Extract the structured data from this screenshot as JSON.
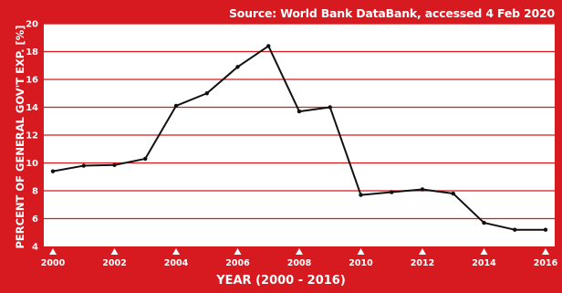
{
  "chart_data": {
    "type": "line",
    "title": "Source: World Bank DataBank, accessed 4 Feb 2020",
    "xlabel": "YEAR (2000 - 2016)",
    "ylabel": "PERCENT OF GENERAL GOV'T EXP. [%]",
    "x": [
      2000,
      2001,
      2002,
      2003,
      2004,
      2005,
      2006,
      2007,
      2008,
      2009,
      2010,
      2011,
      2012,
      2013,
      2014,
      2015,
      2016
    ],
    "series": [
      {
        "values": [
          9.4,
          9.8,
          9.85,
          10.3,
          14.1,
          15.0,
          16.9,
          18.4,
          13.7,
          14.0,
          7.7,
          7.9,
          8.1,
          7.8,
          5.7,
          5.2,
          5.2
        ]
      }
    ],
    "xticks": [
      2000,
      2002,
      2004,
      2006,
      2008,
      2010,
      2012,
      2014,
      2016
    ],
    "yticks": [
      4,
      6,
      8,
      10,
      12,
      14,
      16,
      18,
      20
    ],
    "xlim": [
      2000,
      2016
    ],
    "ylim": [
      4,
      20
    ],
    "grid": "horizontal",
    "colors": {
      "background": "#d71920",
      "plot_area": "#ffffff",
      "grid": "#d71920",
      "line": "#111111",
      "text": "#ffffff"
    }
  }
}
